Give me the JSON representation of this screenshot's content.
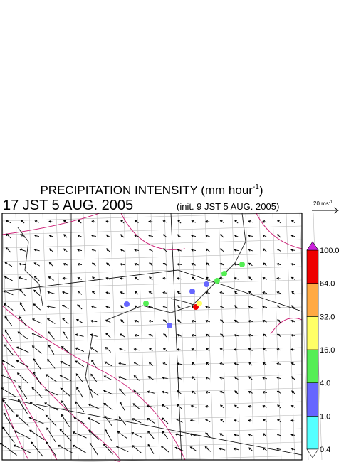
{
  "header": {
    "title": "PRECIPITATION INTENSITY (mm hour",
    "title_sup": "-1",
    "title_end": ")",
    "time": "17 JST 5 AUG. 2005",
    "init": "(init. 9 JST 5 AUG. 2005)"
  },
  "wind_legend": {
    "label": "20 ms",
    "label_sup": "-1"
  },
  "colorbar": {
    "levels": [
      "0.4",
      "1.0",
      "4.0",
      "16.0",
      "32.0",
      "64.0",
      "100.0"
    ],
    "colors": [
      "#55ffff",
      "#6666ff",
      "#55ee55",
      "#ffff66",
      "#ffaa44",
      "#ee0000"
    ],
    "under_color": "#ffffff",
    "over_color": "#cc22dd"
  }
}
